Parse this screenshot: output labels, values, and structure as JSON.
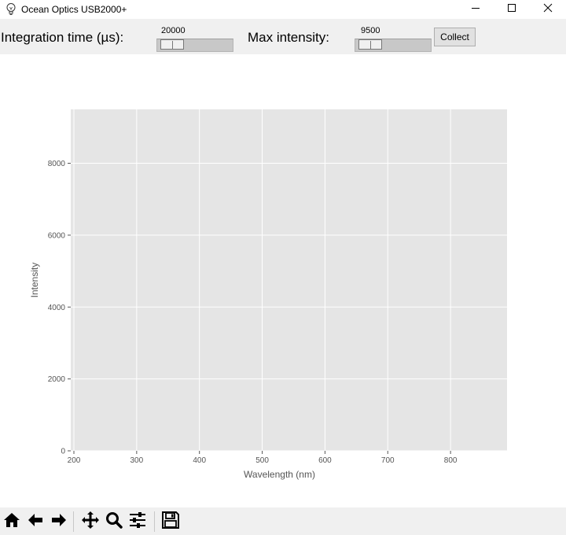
{
  "window": {
    "title": "Ocean Optics USB2000+",
    "icons": {
      "app": "lightbulb-icon",
      "minimize": "minimize-icon",
      "maximize": "maximize-icon",
      "close": "close-icon"
    }
  },
  "controls": {
    "integration_label": "Integration time (µs):",
    "integration_value": "20000",
    "max_intensity_label": "Max intensity:",
    "max_intensity_value": "9500",
    "collect_label": "Collect"
  },
  "chart_data": {
    "type": "line",
    "title": "",
    "xlabel": "Wavelength (nm)",
    "ylabel": "Intensity",
    "xlim": [
      195,
      890
    ],
    "ylim": [
      0,
      9500
    ],
    "xticks": [
      200,
      300,
      400,
      500,
      600,
      700,
      800
    ],
    "yticks": [
      0,
      2000,
      4000,
      6000,
      8000
    ],
    "grid": true,
    "style": "ggplot",
    "colors": {
      "axes_bg": "#e5e5e5",
      "grid": "#ffffff",
      "tick_text": "#555555"
    },
    "series": []
  },
  "toolbar": {
    "icons": [
      "home-icon",
      "back-arrow-icon",
      "forward-arrow-icon",
      "pan-icon",
      "zoom-icon",
      "subplots-config-icon",
      "save-icon"
    ]
  }
}
